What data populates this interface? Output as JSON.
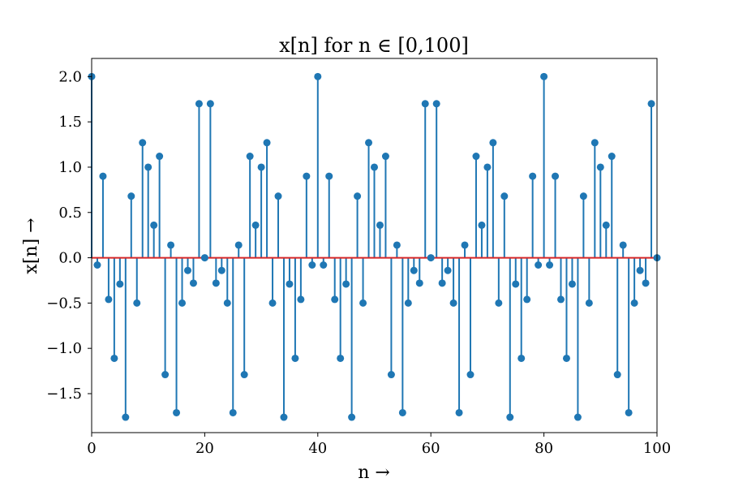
{
  "chart_data": {
    "type": "stem",
    "title": "x[n] for n ∈ [0,100]",
    "xlabel": "n →",
    "ylabel": "x[n] →",
    "xlim": [
      0,
      100
    ],
    "ylim": [
      -1.93,
      2.2
    ],
    "xticks": [
      0,
      20,
      40,
      60,
      80,
      100
    ],
    "yticks": [
      -1.5,
      -1.0,
      -0.5,
      0.0,
      0.5,
      1.0,
      1.5,
      2.0
    ],
    "grid": false,
    "legend": "none",
    "colors": {
      "stem": "#1f77b4",
      "baseline": "#d62728"
    },
    "x": [
      0,
      1,
      2,
      3,
      4,
      5,
      6,
      7,
      8,
      9,
      10,
      11,
      12,
      13,
      14,
      15,
      16,
      17,
      18,
      19,
      20,
      21,
      22,
      23,
      24,
      25,
      26,
      27,
      28,
      29,
      30,
      31,
      32,
      33,
      34,
      35,
      36,
      37,
      38,
      39,
      40,
      41,
      42,
      43,
      44,
      45,
      46,
      47,
      48,
      49,
      50,
      51,
      52,
      53,
      54,
      55,
      56,
      57,
      58,
      59,
      60,
      61,
      62,
      63,
      64,
      65,
      66,
      67,
      68,
      69,
      70,
      71,
      72,
      73,
      74,
      75,
      76,
      77,
      78,
      79,
      80,
      81,
      82,
      83,
      84,
      85,
      86,
      87,
      88,
      89,
      90,
      91,
      92,
      93,
      94,
      95,
      96,
      97,
      98,
      99,
      100
    ],
    "y": [
      2.0,
      -0.08,
      0.9,
      -0.46,
      -1.11,
      -0.29,
      -1.76,
      0.68,
      -0.5,
      1.27,
      1.0,
      0.36,
      1.12,
      -1.29,
      0.14,
      -1.71,
      -0.5,
      -0.14,
      -0.28,
      1.7,
      0.0,
      1.7,
      -0.28,
      -0.14,
      -0.5,
      -1.71,
      0.14,
      -1.29,
      1.12,
      0.36,
      1.0,
      1.27,
      -0.5,
      0.68,
      -1.76,
      -0.29,
      -1.11,
      -0.46,
      0.9,
      -0.08,
      2.0,
      -0.08,
      0.9,
      -0.46,
      -1.11,
      -0.29,
      -1.76,
      0.68,
      -0.5,
      1.27,
      1.0,
      0.36,
      1.12,
      -1.29,
      0.14,
      -1.71,
      -0.5,
      -0.14,
      -0.28,
      1.7,
      0.0,
      1.7,
      -0.28,
      -0.14,
      -0.5,
      -1.71,
      0.14,
      -1.29,
      1.12,
      0.36,
      1.0,
      1.27,
      -0.5,
      0.68,
      -1.76,
      -0.29,
      -1.11,
      -0.46,
      0.9,
      -0.08,
      2.0,
      -0.08,
      0.9,
      -0.46,
      -1.11,
      -0.29,
      -1.76,
      0.68,
      -0.5,
      1.27,
      1.0,
      0.36,
      1.12,
      -1.29,
      0.14,
      -1.71,
      -0.5,
      -0.14,
      -0.28,
      1.7,
      0.0
    ]
  }
}
